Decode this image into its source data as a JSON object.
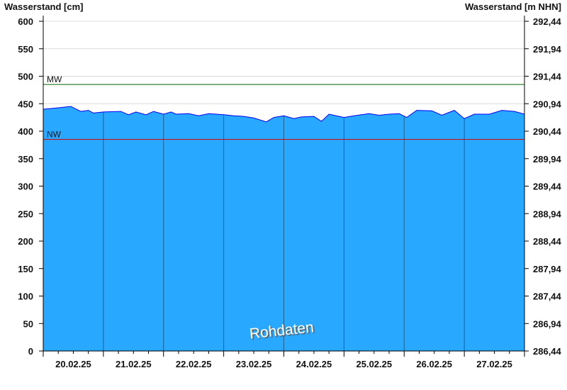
{
  "chart_data": {
    "type": "area",
    "ylabel_left": "Wasserstand [cm]",
    "ylabel_right": "Wasserstand [m NHN]",
    "ylim": [
      0,
      600
    ],
    "yticks_left": [
      "0",
      "50",
      "100",
      "150",
      "200",
      "250",
      "300",
      "350",
      "400",
      "450",
      "500",
      "550",
      "600"
    ],
    "yticks_right": [
      "286,44",
      "286,94",
      "287,44",
      "287,94",
      "288,44",
      "288,94",
      "289,44",
      "289,94",
      "290,44",
      "290,94",
      "291,44",
      "291,94",
      "292,44"
    ],
    "xlim": [
      "2025-02-20T00:00",
      "2025-02-28T00:00"
    ],
    "xtick_labels": [
      "20.02.25",
      "21.02.25",
      "22.02.25",
      "23.02.25",
      "24.02.25",
      "25.02.25",
      "26.02.25",
      "27.02.25"
    ],
    "grid": true,
    "watermark": "Rohdaten",
    "reference_lines": [
      {
        "name": "MW",
        "value": 485,
        "color": "#006400"
      },
      {
        "name": "NW",
        "value": 385,
        "color": "#dd0000"
      }
    ],
    "colors": {
      "fill": "#29a8ff",
      "line": "#0000ff",
      "grid": "#dcdcdc",
      "day_separator": "#1f5f8f"
    },
    "series": [
      {
        "x": [
          "2025-02-20T00:00",
          "2025-02-20T05:00",
          "2025-02-20T11:00",
          "2025-02-20T15:00",
          "2025-02-20T18:00",
          "2025-02-20T20:00",
          "2025-02-21T00:00",
          "2025-02-21T07:00",
          "2025-02-21T10:00",
          "2025-02-21T13:00",
          "2025-02-21T17:00",
          "2025-02-21T20:00",
          "2025-02-22T00:00",
          "2025-02-22T03:00",
          "2025-02-22T05:00",
          "2025-02-22T10:00",
          "2025-02-22T14:00",
          "2025-02-22T18:00",
          "2025-02-23T00:00",
          "2025-02-23T04:00",
          "2025-02-23T08:00",
          "2025-02-23T12:00",
          "2025-02-23T17:00",
          "2025-02-23T20:00",
          "2025-02-24T00:00",
          "2025-02-24T04:00",
          "2025-02-24T07:00",
          "2025-02-24T12:00",
          "2025-02-24T15:00",
          "2025-02-24T18:00",
          "2025-02-25T00:00",
          "2025-02-25T04:00",
          "2025-02-25T10:00",
          "2025-02-25T14:00",
          "2025-02-25T18:00",
          "2025-02-25T22:00",
          "2025-02-26T01:00",
          "2025-02-26T05:00",
          "2025-02-26T11:00",
          "2025-02-26T15:00",
          "2025-02-26T20:00",
          "2025-02-27T00:00",
          "2025-02-27T04:00",
          "2025-02-27T10:00",
          "2025-02-27T15:00",
          "2025-02-27T20:00",
          "2025-02-28T00:00"
        ],
        "y": [
          440,
          442,
          445,
          436,
          438,
          433,
          435,
          436,
          430,
          435,
          430,
          436,
          431,
          435,
          431,
          432,
          428,
          432,
          430,
          428,
          427,
          424,
          417,
          425,
          428,
          423,
          426,
          427,
          418,
          431,
          425,
          428,
          432,
          429,
          431,
          432,
          425,
          438,
          437,
          429,
          438,
          423,
          431,
          431,
          438,
          436,
          431
        ]
      }
    ]
  }
}
